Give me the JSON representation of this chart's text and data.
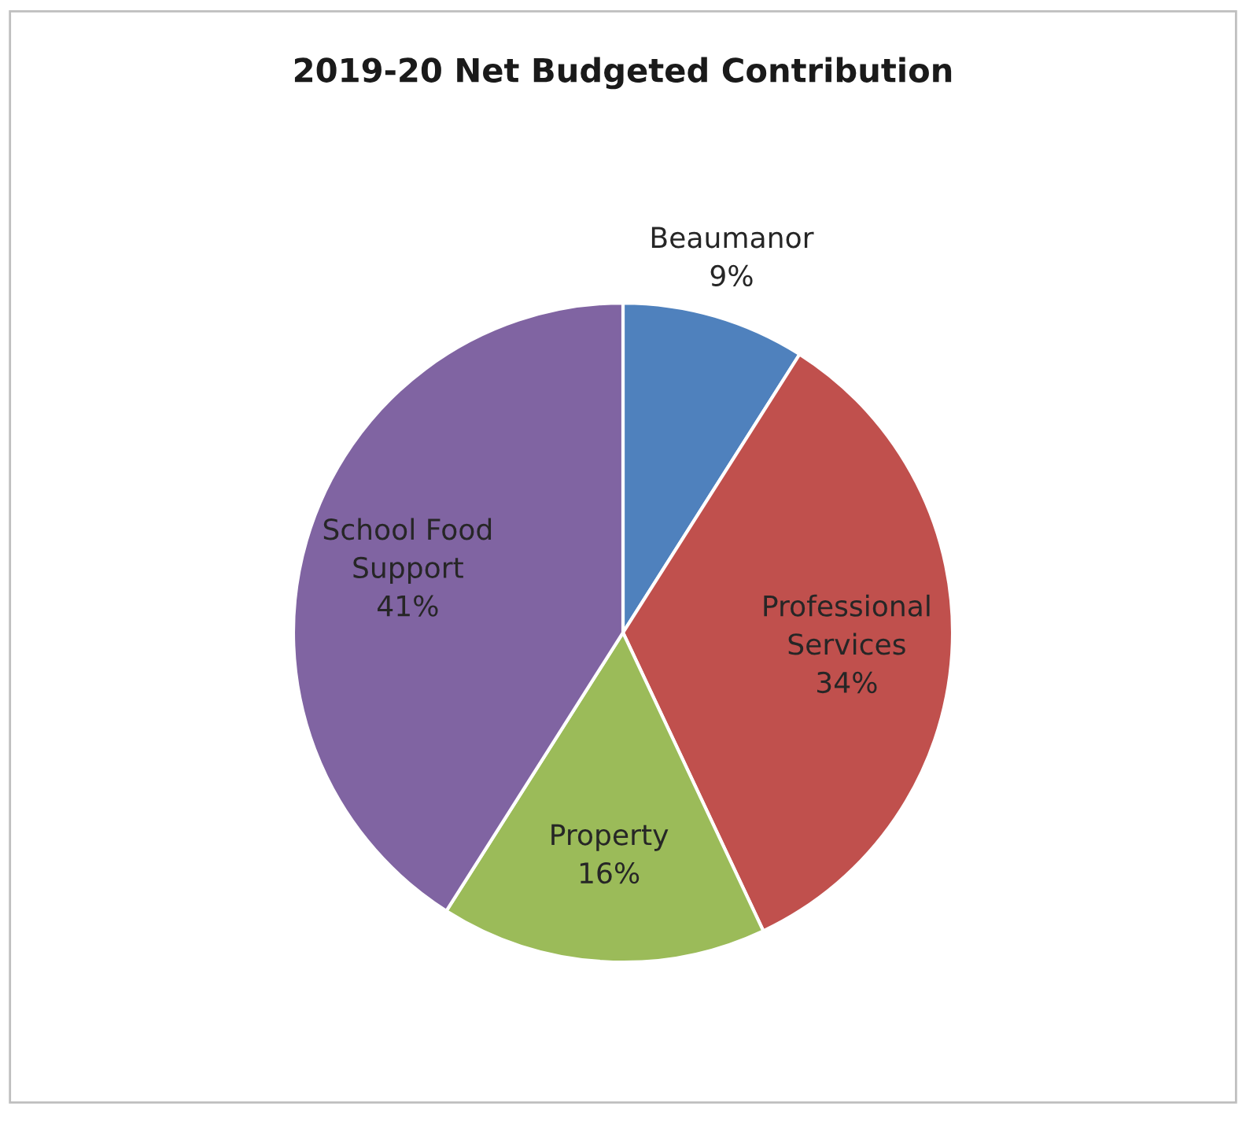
{
  "chart_data": {
    "type": "pie",
    "title": "2019-20 Net Budgeted Contribution",
    "categories": [
      "Beaumanor",
      "Professional Services",
      "Property",
      "School Food Support"
    ],
    "values": [
      9,
      34,
      16,
      41
    ],
    "colors": [
      "#4f81bd",
      "#c0504d",
      "#9bbb59",
      "#8064a2"
    ],
    "value_labels": [
      "9%",
      "34%",
      "16%",
      "41%"
    ]
  }
}
